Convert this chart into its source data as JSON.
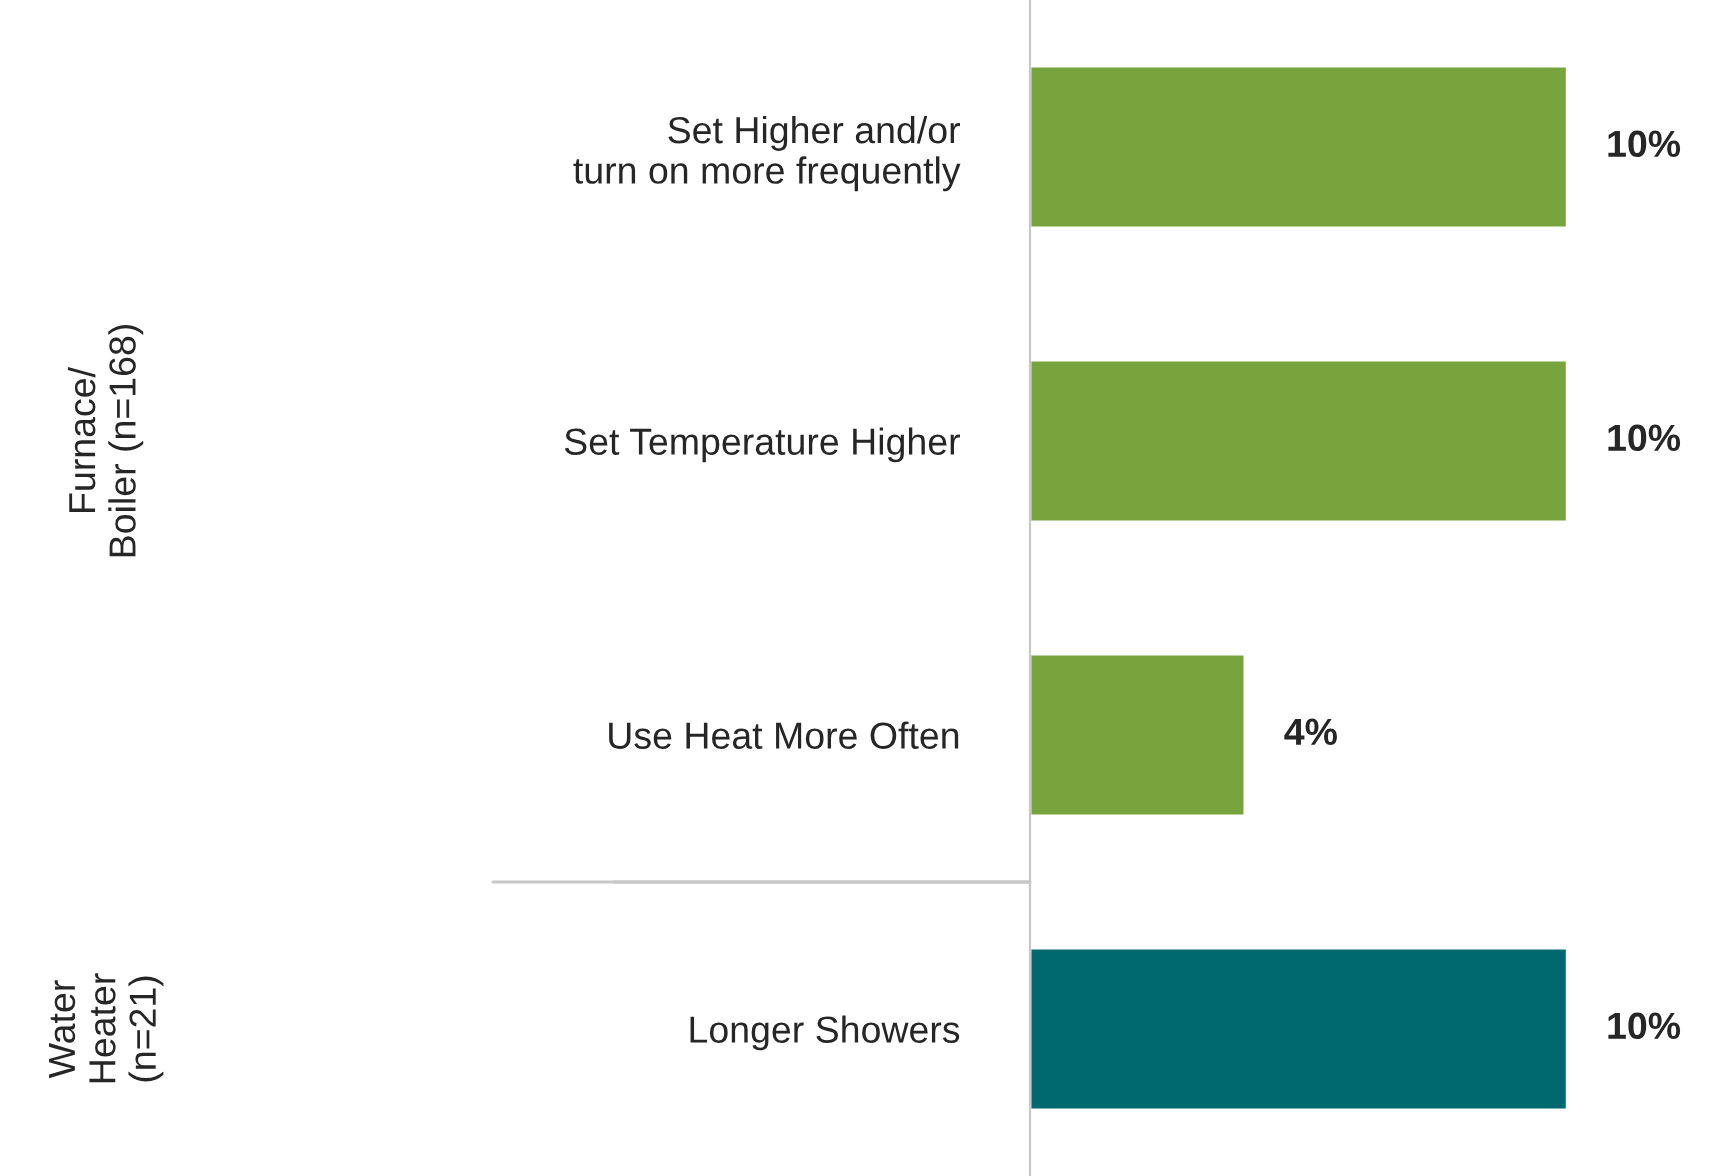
{
  "chart_data": {
    "type": "bar",
    "orientation": "horizontal",
    "categories": [
      "Set Higher and/or\nturn on more frequently",
      "Set Temperature Higher",
      "Use Heat More Often",
      "Longer Showers"
    ],
    "values": [
      10,
      10,
      4,
      10
    ],
    "colors": [
      "#77a43c",
      "#77a43c",
      "#77a43c",
      "#00686f"
    ],
    "value_labels": [
      "10%",
      "10%",
      "4%",
      "10%"
    ],
    "annotations": [
      "Furnace/\nBoiler (n=168)",
      "Water\nHeater\n(n=21)"
    ],
    "grid": false,
    "legend": false
  }
}
